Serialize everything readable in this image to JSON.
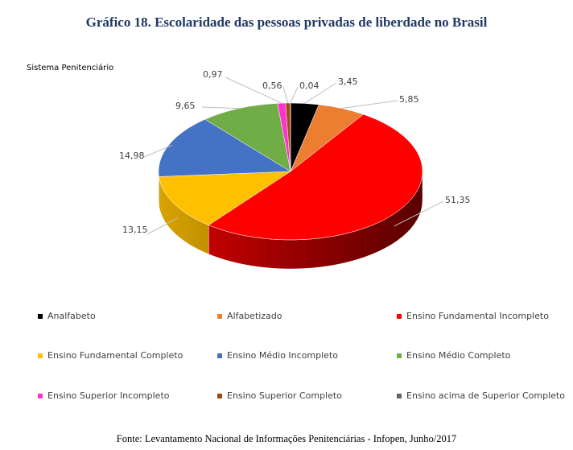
{
  "chart_data": {
    "type": "pie",
    "style": "3d",
    "title": "Gráfico 18. Escolaridade das pessoas privadas de liberdade no Brasil",
    "subtitle": "Sistema Penitenciário",
    "legend_position": "bottom",
    "slices": [
      {
        "name": "Analfabeto",
        "value": 3.45,
        "label": "3,45",
        "color": "#000000"
      },
      {
        "name": "Alfabetizado",
        "value": 5.85,
        "label": "5,85",
        "color": "#ed7d31"
      },
      {
        "name": "Ensino Fundamental Incompleto",
        "value": 51.35,
        "label": "51,35",
        "color": "#ff0000"
      },
      {
        "name": "Ensino Fundamental Completo",
        "value": 13.15,
        "label": "13,15",
        "color": "#ffc000"
      },
      {
        "name": "Ensino Médio Incompleto",
        "value": 14.98,
        "label": "14,98",
        "color": "#4472c4"
      },
      {
        "name": "Ensino Médio Completo",
        "value": 9.65,
        "label": "9,65",
        "color": "#70ad47"
      },
      {
        "name": "Ensino Superior Incompleto",
        "value": 0.97,
        "label": "0,97",
        "color": "#ff33cc"
      },
      {
        "name": "Ensino Superior Completo",
        "value": 0.56,
        "label": "0,56",
        "color": "#9e480e"
      },
      {
        "name": "Ensino acima de Superior Completo",
        "value": 0.04,
        "label": "0,04",
        "color": "#636363"
      }
    ],
    "source": "Fonte: Levantamento Nacional de Informações Penitenciárias - Infopen, Junho/2017"
  }
}
